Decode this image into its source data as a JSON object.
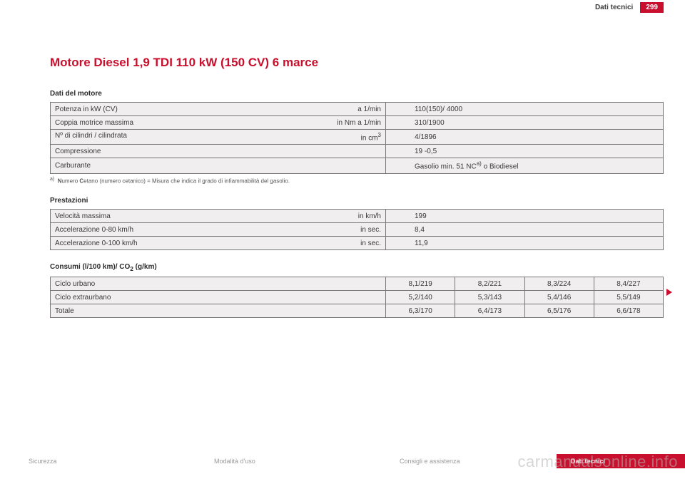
{
  "header": {
    "section": "Dati tecnici",
    "page": "299"
  },
  "title": "Motore Diesel 1,9 TDI 110 kW (150 CV) 6 marce",
  "engine": {
    "heading": "Dati del motore",
    "rows": [
      {
        "label": "Potenza in kW (CV)",
        "unit": "a 1/min",
        "value": "110(150)/ 4000"
      },
      {
        "label": "Coppia motrice massima",
        "unit": "in Nm a 1/min",
        "value": "310/1900"
      },
      {
        "label": "Nº di cilindri / cilindrata",
        "unit_html": "in cm",
        "unit_sup": "3",
        "value": "4/1896"
      },
      {
        "label": "Compressione",
        "unit": "",
        "value": "19 -0,5"
      },
      {
        "label": "Carburante",
        "unit": "",
        "value_html": "Gasolio min. 51 NC",
        "value_sup": "a)",
        "value_tail": " o Biodiesel"
      }
    ],
    "footnote_mark": "a)",
    "footnote": "Numero Cetano (numero cetanico) = Misura che indica il grado di infiammabilità del gasolio.",
    "footnote_bold1": "N",
    "footnote_bold2": "C"
  },
  "performance": {
    "heading": "Prestazioni",
    "rows": [
      {
        "label": "Velocità massima",
        "unit": "in km/h",
        "value": "199"
      },
      {
        "label": "Accelerazione 0-80 km/h",
        "unit": "in sec.",
        "value": "8,4"
      },
      {
        "label": "Accelerazione 0-100 km/h",
        "unit": "in sec.",
        "value": "11,9"
      }
    ]
  },
  "consumption": {
    "heading_pre": "Consumi (l/100 km)/ CO",
    "heading_sub": "2",
    "heading_post": " (g/km)",
    "rows": [
      {
        "label": "Ciclo urbano",
        "v1": "8,1/219",
        "v2": "8,2/221",
        "v3": "8,3/224",
        "v4": "8,4/227"
      },
      {
        "label": "Ciclo extraurbano",
        "v1": "5,2/140",
        "v2": "5,3/143",
        "v3": "5,4/146",
        "v4": "5,5/149"
      },
      {
        "label": "Totale",
        "v1": "6,3/170",
        "v2": "6,4/173",
        "v3": "6,5/176",
        "v4": "6,6/178"
      }
    ]
  },
  "nav": {
    "i1": "Sicurezza",
    "i2": "Modalità d'uso",
    "i3": "Consigli e assistenza",
    "i4": "Dati tecnici"
  },
  "watermark": "carmanualsonline.info"
}
